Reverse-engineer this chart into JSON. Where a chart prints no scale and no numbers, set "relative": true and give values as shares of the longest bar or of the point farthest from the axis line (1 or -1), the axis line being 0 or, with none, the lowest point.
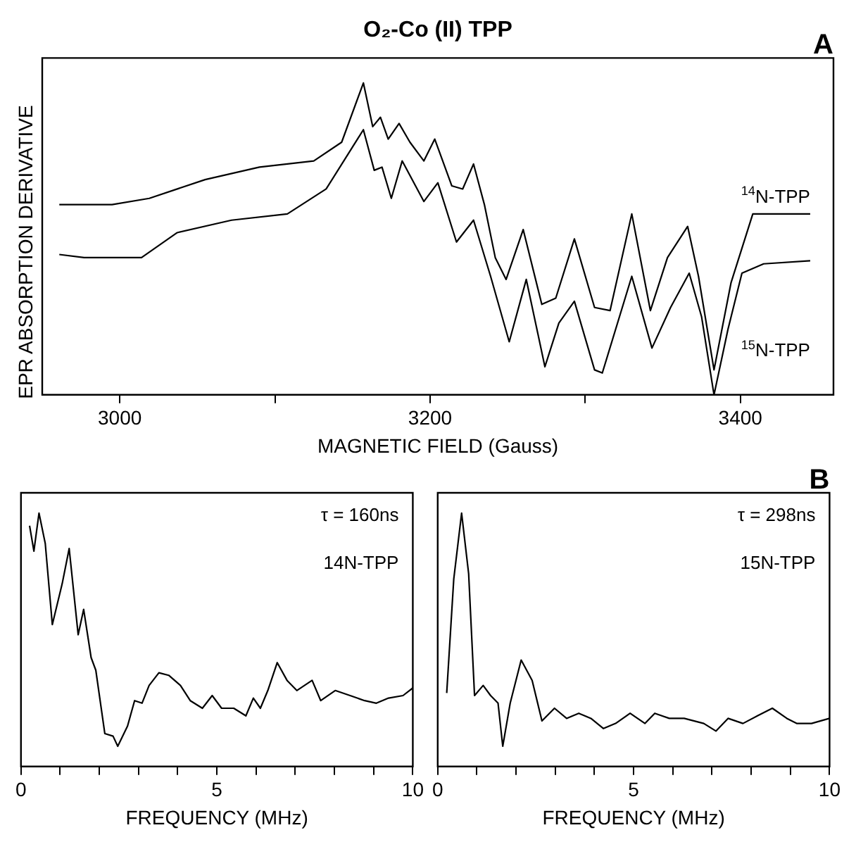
{
  "chart_data": [
    {
      "type": "line",
      "title": "O₂-Co (II) TPP",
      "xlabel": "MAGNETIC FIELD (Gauss)",
      "ylabel": "EPR ABSORPTION DERIVATIVE",
      "relative": true,
      "xlim": [
        2950,
        3460
      ],
      "xticks": [
        3000,
        {
          "value": 3100,
          "label": null
        },
        3200,
        {
          "value": 3300,
          "label": null
        },
        3400
      ],
      "grid": false,
      "legend": false,
      "marker": "none",
      "line_style": "solid",
      "annotations": [
        "A"
      ],
      "series": [
        {
          "name": "$^{14}$N-TPP",
          "color": "#000000",
          "x": [
            2961,
            2995,
            3019,
            3055,
            3090,
            3125,
            3143,
            3157,
            3163,
            3168,
            3173,
            3180,
            3187,
            3196,
            3203,
            3214,
            3221,
            3228,
            3235,
            3242,
            3249,
            3260,
            3272,
            3281,
            3293,
            3306,
            3316,
            3330,
            3342,
            3353,
            3366,
            3373,
            3383,
            3394,
            3408,
            3422,
            3445
          ],
          "values": [
            0.61,
            0.61,
            0.63,
            0.69,
            0.73,
            0.75,
            0.81,
            1.0,
            0.86,
            0.89,
            0.82,
            0.87,
            0.81,
            0.75,
            0.82,
            0.67,
            0.66,
            0.74,
            0.61,
            0.44,
            0.37,
            0.53,
            0.29,
            0.31,
            0.5,
            0.28,
            0.27,
            0.58,
            0.27,
            0.44,
            0.54,
            0.38,
            0.08,
            0.36,
            0.58,
            0.58,
            0.58
          ]
        },
        {
          "name": "$^{15}$N-TPP",
          "color": "#000000",
          "x": [
            2961,
            2977,
            2998,
            3014,
            3037,
            3072,
            3108,
            3133,
            3157,
            3164,
            3169,
            3175,
            3182,
            3196,
            3205,
            3217,
            3228,
            3239,
            3251,
            3262,
            3274,
            3283,
            3293,
            3306,
            3311,
            3330,
            3343,
            3355,
            3367,
            3375,
            3383,
            3392,
            3401,
            3415,
            3445
          ],
          "values": [
            0.45,
            0.44,
            0.44,
            0.44,
            0.52,
            0.56,
            0.58,
            0.66,
            0.85,
            0.72,
            0.73,
            0.63,
            0.75,
            0.62,
            0.68,
            0.49,
            0.56,
            0.38,
            0.17,
            0.37,
            0.09,
            0.23,
            0.3,
            0.08,
            0.07,
            0.38,
            0.15,
            0.28,
            0.39,
            0.25,
            0.0,
            0.21,
            0.39,
            0.42,
            0.43
          ]
        }
      ]
    },
    {
      "type": "line",
      "xlabel": "FREQUENCY (MHz)",
      "relative": true,
      "xlim": [
        0,
        10
      ],
      "xticks": [
        0,
        {
          "value": 1,
          "label": null
        },
        {
          "value": 2,
          "label": null
        },
        {
          "value": 3,
          "label": null
        },
        {
          "value": 4,
          "label": null
        },
        5,
        {
          "value": 6,
          "label": null
        },
        {
          "value": 7,
          "label": null
        },
        {
          "value": 8,
          "label": null
        },
        {
          "value": 9,
          "label": null
        },
        10
      ],
      "grid": false,
      "legend": false,
      "marker": "none",
      "line_style": "solid",
      "annotations": [
        "τ = 160ns",
        "14N-TPP"
      ],
      "series": [
        {
          "color": "#000000",
          "x": [
            0.22,
            0.33,
            0.46,
            0.62,
            0.8,
            1.05,
            1.23,
            1.46,
            1.6,
            1.79,
            1.91,
            2.14,
            2.35,
            2.47,
            2.72,
            2.9,
            3.09,
            3.27,
            3.52,
            3.77,
            4.07,
            4.32,
            4.63,
            4.88,
            5.12,
            5.43,
            5.74,
            5.93,
            6.11,
            6.3,
            6.54,
            6.79,
            7.04,
            7.43,
            7.65,
            8.02,
            8.4,
            8.77,
            9.07,
            9.38,
            9.75,
            10.0
          ],
          "values": [
            0.95,
            0.85,
            1.0,
            0.88,
            0.56,
            0.72,
            0.86,
            0.52,
            0.62,
            0.43,
            0.38,
            0.13,
            0.12,
            0.08,
            0.16,
            0.26,
            0.25,
            0.32,
            0.37,
            0.36,
            0.32,
            0.26,
            0.23,
            0.28,
            0.23,
            0.23,
            0.2,
            0.27,
            0.23,
            0.3,
            0.41,
            0.34,
            0.3,
            0.34,
            0.26,
            0.3,
            0.28,
            0.26,
            0.25,
            0.27,
            0.28,
            0.31
          ]
        }
      ]
    },
    {
      "type": "line",
      "xlabel": "FREQUENCY (MHz)",
      "relative": true,
      "xlim": [
        0,
        10
      ],
      "xticks": [
        0,
        {
          "value": 1,
          "label": null
        },
        {
          "value": 2,
          "label": null
        },
        {
          "value": 3,
          "label": null
        },
        {
          "value": 4,
          "label": null
        },
        5,
        {
          "value": 6,
          "label": null
        },
        {
          "value": 7,
          "label": null
        },
        {
          "value": 8,
          "label": null
        },
        {
          "value": 9,
          "label": null
        },
        10
      ],
      "grid": false,
      "legend": false,
      "marker": "none",
      "line_style": "solid",
      "annotations": [
        "τ = 298ns",
        "15N-TPP",
        "B"
      ],
      "series": [
        {
          "color": "#000000",
          "x": [
            0.23,
            0.41,
            0.61,
            0.79,
            0.94,
            1.16,
            1.35,
            1.54,
            1.66,
            1.85,
            2.13,
            2.41,
            2.66,
            2.98,
            3.29,
            3.6,
            3.91,
            4.23,
            4.54,
            4.91,
            5.29,
            5.54,
            5.91,
            6.29,
            6.79,
            7.1,
            7.41,
            7.79,
            8.16,
            8.54,
            8.91,
            9.16,
            9.54,
            10.0
          ],
          "values": [
            0.29,
            0.74,
            1.0,
            0.76,
            0.28,
            0.32,
            0.28,
            0.25,
            0.08,
            0.25,
            0.42,
            0.34,
            0.18,
            0.23,
            0.19,
            0.21,
            0.19,
            0.15,
            0.17,
            0.21,
            0.17,
            0.21,
            0.19,
            0.19,
            0.17,
            0.14,
            0.19,
            0.17,
            0.2,
            0.23,
            0.19,
            0.17,
            0.17,
            0.19
          ]
        }
      ]
    }
  ]
}
